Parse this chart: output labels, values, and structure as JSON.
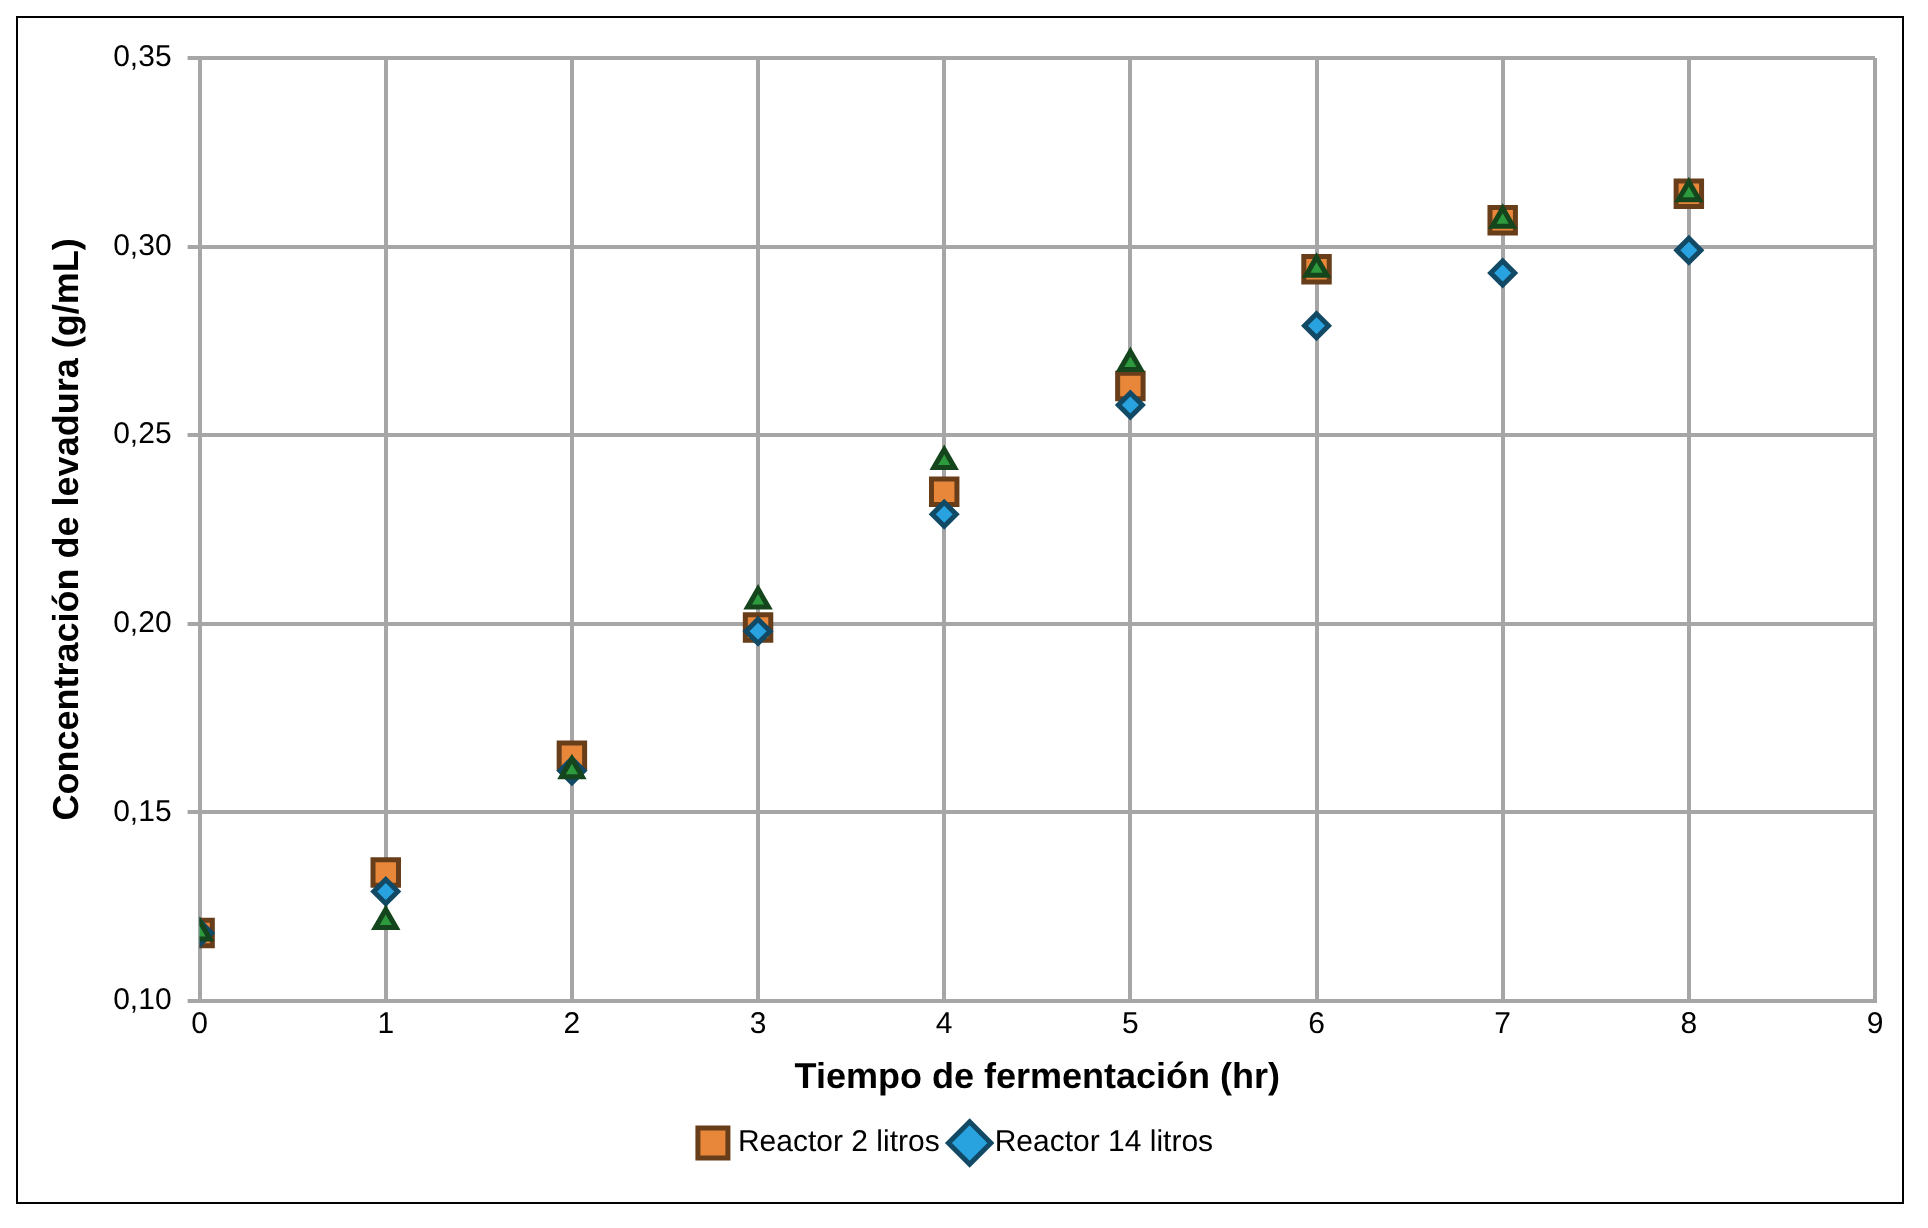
{
  "chart_data": {
    "type": "scatter",
    "xlabel": "Tiempo de fermentación (hr)",
    "ylabel": "Concentración de levadura (g/mL)",
    "x": [
      0,
      1,
      2,
      3,
      4,
      5,
      6,
      7,
      8
    ],
    "series": [
      {
        "name": "Reactor 2 litros",
        "color": "#e8873a",
        "marker": "square",
        "values": [
          0.118,
          0.134,
          0.165,
          0.199,
          0.235,
          0.263,
          0.294,
          0.307,
          0.314
        ]
      },
      {
        "name": "Reactor 14 litros",
        "color": "#29a3e0",
        "marker": "diamond",
        "values": [
          0.118,
          0.129,
          0.161,
          0.198,
          0.229,
          0.258,
          0.279,
          0.293,
          0.299
        ]
      },
      {
        "color": "#2e9a3e",
        "marker": "triangle",
        "values": [
          0.118,
          0.121,
          0.161,
          0.206,
          0.243,
          0.269,
          0.294,
          0.307,
          0.314
        ]
      }
    ],
    "xlim": [
      0,
      9
    ],
    "xticks": [
      0,
      1,
      2,
      3,
      4,
      5,
      6,
      7,
      8,
      9
    ],
    "ylim": [
      0.1,
      0.35
    ],
    "yticks": [
      {
        "value": 0.1,
        "label": "0,10"
      },
      {
        "value": 0.15,
        "label": "0,15"
      },
      {
        "value": 0.2,
        "label": "0,20"
      },
      {
        "value": 0.25,
        "label": "0,25"
      },
      {
        "value": 0.3,
        "label": "0,30"
      },
      {
        "value": 0.35,
        "label": "0,35"
      }
    ],
    "grid": true,
    "legend": "bottom"
  }
}
